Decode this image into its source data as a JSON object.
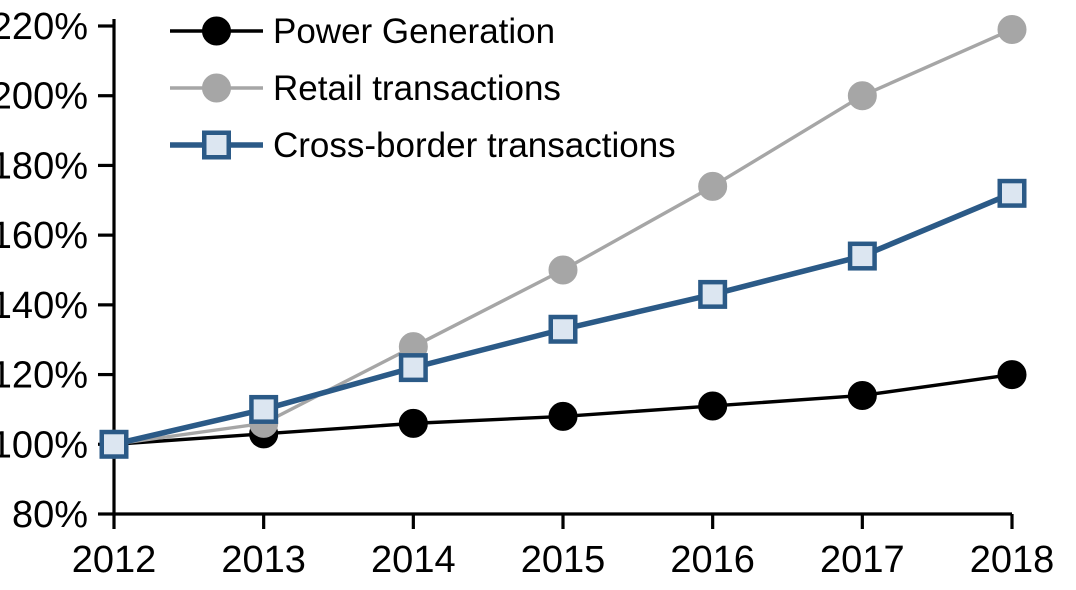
{
  "chart_data": {
    "type": "line",
    "title": "",
    "xlabel": "",
    "ylabel": "",
    "categories": [
      "2012",
      "2013",
      "2014",
      "2015",
      "2016",
      "2017",
      "2018"
    ],
    "series": [
      {
        "name": "Power Generation",
        "values": [
          100,
          103,
          106,
          108,
          111,
          114,
          120
        ],
        "line_color": "#000000",
        "marker": "circle",
        "marker_fill": "#000000",
        "marker_stroke": "#000000",
        "line_width": 3.4
      },
      {
        "name": "Retail transactions",
        "values": [
          100,
          106,
          128,
          150,
          174,
          200,
          219
        ],
        "line_color": "#a6a6a6",
        "marker": "circle",
        "marker_fill": "#a6a6a6",
        "marker_stroke": "#a6a6a6",
        "line_width": 3.4
      },
      {
        "name": "Cross-border transactions",
        "values": [
          100,
          110,
          122,
          133,
          143,
          154,
          172
        ],
        "line_color": "#2b5a87",
        "marker": "square",
        "marker_fill": "#dce6f1",
        "marker_stroke": "#2b5a87",
        "line_width": 5.5
      }
    ],
    "ylim": [
      80,
      220
    ],
    "ytick_step": 20,
    "ytick_labels": [
      "80%",
      "100%",
      "120%",
      "140%",
      "160%",
      "180%",
      "200%",
      "220%"
    ],
    "ytick_values": [
      80,
      100,
      120,
      140,
      160,
      180,
      200,
      220
    ],
    "grid": false,
    "legend_position": "top-left",
    "axis_color": "#000000",
    "background": "#ffffff"
  }
}
